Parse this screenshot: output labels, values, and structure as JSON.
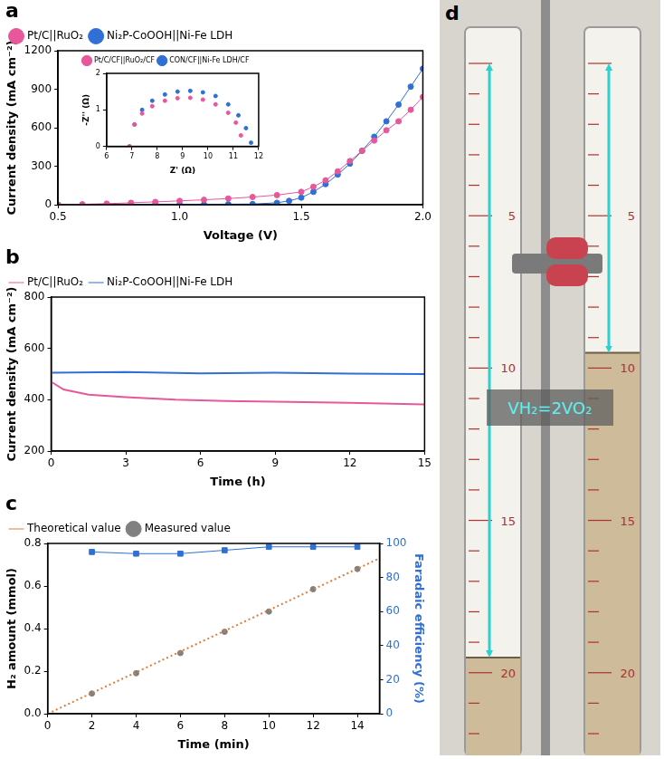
{
  "chart_data": [
    {
      "panel": "a",
      "type": "line",
      "x_label": "Voltage (V)",
      "y_label": "Current density (mA cm⁻²)",
      "xlim": [
        0.5,
        2.0
      ],
      "xticks": [
        0.5,
        {
          "value": 1,
          "label": "1.0"
        },
        1.5,
        {
          "value": 2,
          "label": "2.0"
        }
      ],
      "ylim": [
        0,
        1200
      ],
      "yticks": [
        0,
        300,
        600,
        900,
        1200
      ],
      "grid": false,
      "legend": "top",
      "series": [
        {
          "name": "Pt/C||RuO₂",
          "color": "#e8579b",
          "marker": "circle",
          "line_style": "solid",
          "x": [
            0.5,
            0.6,
            0.7,
            0.8,
            0.9,
            1.0,
            1.1,
            1.2,
            1.3,
            1.4,
            1.5,
            1.55,
            1.6,
            1.65,
            1.7,
            1.75,
            1.8,
            1.85,
            1.9,
            1.95,
            2.0
          ],
          "values": [
            0,
            3,
            8,
            15,
            22,
            30,
            38,
            48,
            60,
            75,
            100,
            140,
            190,
            260,
            340,
            420,
            500,
            580,
            650,
            740,
            840
          ]
        },
        {
          "name": "Ni₂P-CoOOH||Ni-Fe LDH",
          "color": "#2f6fd6",
          "marker": "circle",
          "line_style": "solid",
          "x": [
            0.5,
            0.6,
            0.7,
            0.8,
            0.9,
            1.0,
            1.1,
            1.2,
            1.3,
            1.4,
            1.45,
            1.5,
            1.55,
            1.6,
            1.65,
            1.7,
            1.75,
            1.8,
            1.85,
            1.9,
            1.95,
            2.0
          ],
          "values": [
            0,
            0,
            1,
            1,
            2,
            2,
            3,
            4,
            5,
            15,
            30,
            55,
            100,
            160,
            235,
            320,
            420,
            530,
            650,
            780,
            920,
            1060
          ]
        }
      ],
      "inset": {
        "type": "line",
        "x_label": "Z' (Ω)",
        "y_label": "-Z'' (Ω)",
        "xlim": [
          6,
          12
        ],
        "xticks": [
          6,
          7,
          8,
          9,
          10,
          11,
          12
        ],
        "ylim": [
          0,
          2
        ],
        "yticks": [
          0,
          1,
          2
        ],
        "grid": false,
        "legend": "top",
        "series": [
          {
            "name": "Pt/C/CF||RuO₂/CF",
            "color": "#e8579b",
            "marker": "circle",
            "line_style": "none",
            "x": [
              6.9,
              7.1,
              7.4,
              7.8,
              8.3,
              8.8,
              9.3,
              9.8,
              10.3,
              10.8,
              11.1,
              11.3
            ],
            "values": [
              0,
              0.6,
              0.9,
              1.1,
              1.25,
              1.32,
              1.33,
              1.28,
              1.15,
              0.92,
              0.65,
              0.3
            ]
          },
          {
            "name": "CON/CF||Ni-Fe LDH/CF",
            "color": "#2f6fd6",
            "marker": "circle",
            "line_style": "none",
            "x": [
              6.9,
              7.1,
              7.4,
              7.8,
              8.3,
              8.8,
              9.3,
              9.8,
              10.3,
              10.8,
              11.2,
              11.5,
              11.7
            ],
            "values": [
              0,
              0.6,
              1.0,
              1.25,
              1.42,
              1.5,
              1.52,
              1.48,
              1.38,
              1.15,
              0.85,
              0.5,
              0.1
            ]
          }
        ]
      }
    },
    {
      "panel": "b",
      "type": "line",
      "x_label": "Time (h)",
      "y_label": "Current density (mA cm⁻²)",
      "xlim": [
        0,
        15
      ],
      "xticks": [
        0,
        3,
        6,
        9,
        12,
        15
      ],
      "ylim": [
        200,
        800
      ],
      "yticks": [
        200,
        400,
        600,
        800
      ],
      "grid": false,
      "legend": "top",
      "series": [
        {
          "name": "Pt/C||RuO₂",
          "color": "#e8579b",
          "marker": "none",
          "line_style": "solid",
          "x": [
            0,
            0.5,
            1.5,
            3,
            5,
            7,
            9,
            12,
            15
          ],
          "values": [
            470,
            440,
            420,
            410,
            400,
            395,
            392,
            388,
            382
          ]
        },
        {
          "name": "Ni₂P-CoOOH||Ni-Fe LDH",
          "color": "#2f6fd6",
          "marker": "none",
          "line_style": "solid",
          "x": [
            0,
            3,
            6,
            9,
            12,
            15
          ],
          "values": [
            505,
            508,
            503,
            505,
            502,
            500
          ]
        }
      ]
    },
    {
      "panel": "c",
      "type": "line",
      "x_label": "Time (min)",
      "y_label": "H₂ amount (mmol)",
      "y2_label": "Faradaic efficiency (%)",
      "xlim": [
        0,
        15
      ],
      "xticks": [
        0,
        2,
        4,
        6,
        8,
        10,
        12,
        14
      ],
      "ylim": [
        0,
        0.8
      ],
      "yticks": [
        {
          "value": 0,
          "label": "0.0"
        },
        0.2,
        0.4,
        0.6,
        0.8
      ],
      "y2lim": [
        0,
        100
      ],
      "y2ticks": [
        0,
        20,
        40,
        60,
        80,
        100
      ],
      "grid": false,
      "legend": "top",
      "series": [
        {
          "name": "Theoretical value",
          "color": "#e07b39",
          "marker": "none",
          "line_style": "dotted",
          "x": [
            0,
            15
          ],
          "values": [
            0,
            0.73
          ]
        },
        {
          "name": "Measured value",
          "color": "#808080",
          "marker": "circle",
          "line_style": "none",
          "x": [
            2,
            4,
            6,
            8,
            10,
            12,
            14
          ],
          "values": [
            0.095,
            0.19,
            0.285,
            0.385,
            0.48,
            0.585,
            0.68
          ]
        },
        {
          "color": "#2f6fd6",
          "marker": "square",
          "line_style": "solid",
          "axis": "y2",
          "x": [
            2,
            4,
            6,
            8,
            10,
            12,
            14
          ],
          "values": [
            95,
            94,
            94,
            96,
            98,
            98,
            98
          ]
        }
      ]
    }
  ],
  "photo": {
    "panel": "d",
    "annotation": "VH₂=2VO₂",
    "scale_range": [
      0,
      22
    ],
    "tubes": [
      {
        "scale_labels": [
          5,
          10,
          15,
          20
        ],
        "level": 19.5
      },
      {
        "scale_labels": [
          5,
          10,
          15,
          20
        ],
        "level": 9.5
      }
    ]
  }
}
